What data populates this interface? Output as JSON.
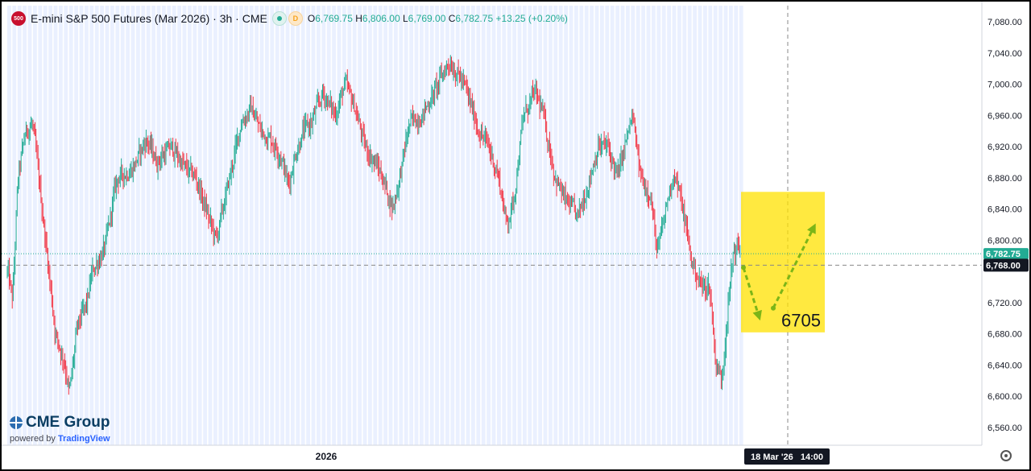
{
  "header": {
    "symbol_badge": "500",
    "title": "E-mini S&P 500 Futures (Mar 2026) · 3h · CME",
    "badge_d": "D",
    "open_label": "O",
    "open": "6,769.75",
    "high_label": "H",
    "high": "6,806.00",
    "low_label": "L",
    "low": "6,769.00",
    "close_label": "C",
    "close": "6,782.75",
    "change": "+13.25 (+0.20%)"
  },
  "logo": {
    "name": "CME Group",
    "powered_by": "powered by",
    "platform": "TradingView"
  },
  "colors": {
    "up": "#22ab94",
    "down": "#f23645",
    "price_tag": "#22ab94",
    "crosshair_tag": "#131722",
    "highlight": "#ffe100",
    "arrow": "#7cb518",
    "session_bg": "#eaf0ff"
  },
  "chart_data": {
    "type": "candlestick",
    "y_axis": {
      "ticks": [
        "7,080.00",
        "7,040.00",
        "7,000.00",
        "6,960.00",
        "6,920.00",
        "6,880.00",
        "6,840.00",
        "6,800.00",
        "6,760.00",
        "6,720.00",
        "6,680.00",
        "6,640.00",
        "6,600.00",
        "6,560.00"
      ],
      "tick_values": [
        7080,
        7040,
        7000,
        6960,
        6920,
        6880,
        6840,
        6800,
        6760,
        6720,
        6680,
        6640,
        6600,
        6560
      ],
      "range": [
        6535,
        7100
      ]
    },
    "x_axis": {
      "label": "2026",
      "crosshair_label": "18 Mar '26   14:00"
    },
    "current_price": {
      "label": "6,782.75",
      "value": 6782.75
    },
    "crosshair_price": {
      "label": "6,768.00",
      "value": 6768
    },
    "anchors": [
      [
        0,
        6760
      ],
      [
        5,
        6720
      ],
      [
        10,
        6880
      ],
      [
        18,
        6940
      ],
      [
        25,
        6950
      ],
      [
        38,
        6800
      ],
      [
        48,
        6680
      ],
      [
        58,
        6640
      ],
      [
        62,
        6600
      ],
      [
        70,
        6690
      ],
      [
        80,
        6720
      ],
      [
        85,
        6760
      ],
      [
        98,
        6790
      ],
      [
        110,
        6880
      ],
      [
        125,
        6890
      ],
      [
        140,
        6930
      ],
      [
        150,
        6900
      ],
      [
        165,
        6920
      ],
      [
        180,
        6890
      ],
      [
        190,
        6880
      ],
      [
        197,
        6850
      ],
      [
        210,
        6800
      ],
      [
        222,
        6870
      ],
      [
        235,
        6950
      ],
      [
        245,
        6970
      ],
      [
        255,
        6940
      ],
      [
        265,
        6930
      ],
      [
        275,
        6910
      ],
      [
        283,
        6870
      ],
      [
        290,
        6910
      ],
      [
        298,
        6940
      ],
      [
        306,
        6950
      ],
      [
        318,
        6990
      ],
      [
        330,
        6960
      ],
      [
        340,
        7000
      ],
      [
        350,
        6970
      ],
      [
        360,
        6920
      ],
      [
        370,
        6900
      ],
      [
        378,
        6880
      ],
      [
        388,
        6840
      ],
      [
        395,
        6880
      ],
      [
        405,
        6950
      ],
      [
        418,
        6960
      ],
      [
        430,
        6990
      ],
      [
        445,
        7030
      ],
      [
        460,
        7000
      ],
      [
        475,
        6940
      ],
      [
        485,
        6920
      ],
      [
        495,
        6880
      ],
      [
        503,
        6820
      ],
      [
        510,
        6850
      ],
      [
        520,
        6960
      ],
      [
        532,
        6990
      ],
      [
        540,
        6960
      ],
      [
        552,
        6880
      ],
      [
        562,
        6850
      ],
      [
        575,
        6830
      ],
      [
        587,
        6880
      ],
      [
        595,
        6920
      ],
      [
        605,
        6920
      ],
      [
        615,
        6880
      ],
      [
        622,
        6920
      ],
      [
        630,
        6960
      ],
      [
        638,
        6880
      ],
      [
        648,
        6860
      ],
      [
        655,
        6780
      ],
      [
        665,
        6850
      ],
      [
        672,
        6890
      ],
      [
        682,
        6830
      ],
      [
        690,
        6770
      ],
      [
        700,
        6740
      ],
      [
        708,
        6740
      ],
      [
        714,
        6640
      ],
      [
        720,
        6620
      ],
      [
        725,
        6700
      ],
      [
        732,
        6790
      ],
      [
        740,
        6790
      ]
    ],
    "forecast": {
      "target_label": "6705",
      "target_value": 6705,
      "zone_top": 6862,
      "zone_bottom": 6682,
      "path": [
        6765,
        6703,
        6713,
        6816
      ]
    }
  }
}
